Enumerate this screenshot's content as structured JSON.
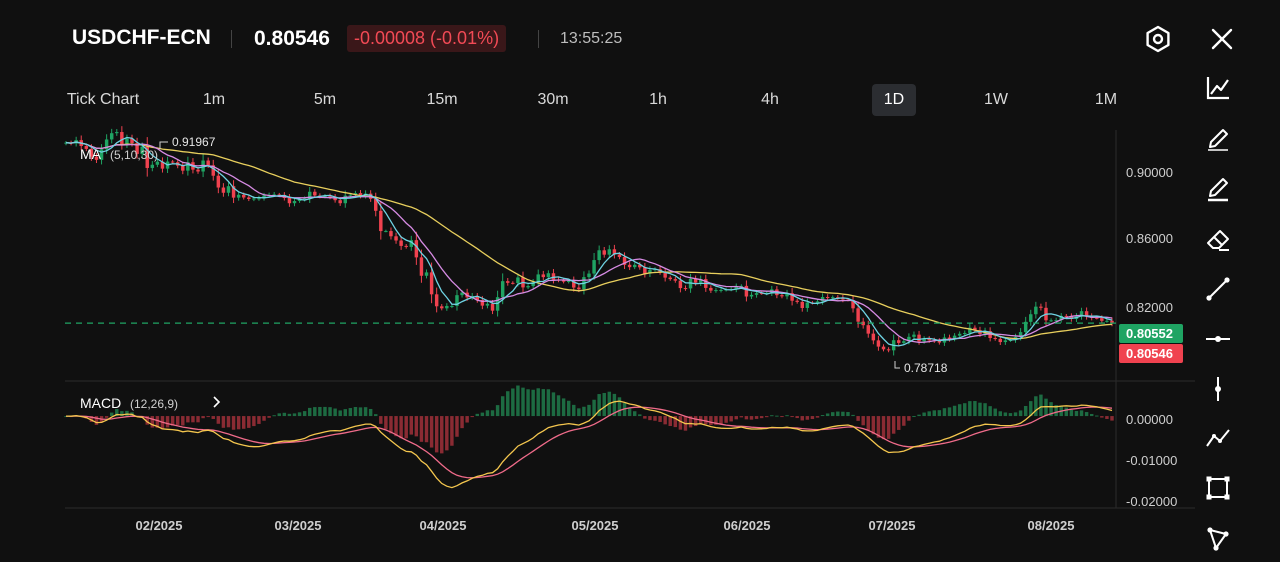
{
  "header": {
    "symbol": "USDCHF-ECN",
    "price": "0.80546",
    "change": "-0.00008 (-0.01%)",
    "time": "13:55:25",
    "settings_icon": "hexagon-settings-icon",
    "close_icon": "close-icon"
  },
  "timeframes": [
    {
      "label": "Tick Chart",
      "active": false
    },
    {
      "label": "1m",
      "active": false
    },
    {
      "label": "5m",
      "active": false
    },
    {
      "label": "15m",
      "active": false
    },
    {
      "label": "30m",
      "active": false
    },
    {
      "label": "1h",
      "active": false
    },
    {
      "label": "4h",
      "active": false
    },
    {
      "label": "1D",
      "active": true
    },
    {
      "label": "1W",
      "active": false
    },
    {
      "label": "1M",
      "active": false
    }
  ],
  "tools": [
    "line-chart-icon",
    "pencil-icon",
    "pencil-underline-icon",
    "eraser-icon",
    "trend-line-icon",
    "horizontal-line-icon",
    "vertical-line-icon",
    "polyline-icon",
    "rectangle-icon",
    "shapes-icon"
  ],
  "chart": {
    "ma_label": "MA",
    "ma_params": "(5,10,30)",
    "macd_label": "MACD",
    "macd_params": "(12,26,9)",
    "high_label": "0.91967",
    "low_label": "0.78718",
    "price_ticks": [
      "0.90000",
      "0.86000",
      "0.82000"
    ],
    "price_range": [
      0.773,
      0.92
    ],
    "macd_ticks": [
      "0.00000",
      "-0.01000",
      "-0.02000"
    ],
    "macd_range": [
      -0.0215,
      0.0075
    ],
    "bid_label": "0.80552",
    "ask_label": "0.80546",
    "bid_value": 0.80552,
    "ask_value": 0.80546,
    "x_labels": [
      "02/2025",
      "03/2025",
      "04/2025",
      "05/2025",
      "06/2025",
      "07/2025",
      "08/2025"
    ],
    "colors": {
      "up": "#1fa463",
      "down": "#f0424f",
      "ma5": "#6fd3e3",
      "ma10": "#d68be3",
      "ma30": "#e8cf5d",
      "dif": "#f4c64e",
      "dea": "#f06b8a"
    }
  },
  "chart_data": {
    "type": "candlestick",
    "series_close": [
      0.9125,
      0.912,
      0.914,
      0.9105,
      0.9088,
      0.9042,
      0.9023,
      0.9086,
      0.9144,
      0.9181,
      0.9188,
      0.9115,
      0.9149,
      0.9123,
      0.9058,
      0.9101,
      0.8975,
      0.8994,
      0.9012,
      0.8971,
      0.9013,
      0.9009,
      0.8989,
      0.8959,
      0.9009,
      0.8965,
      0.8954,
      0.9019,
      0.8991,
      0.8929,
      0.8859,
      0.8828,
      0.8867,
      0.8799,
      0.8816,
      0.88,
      0.8791,
      0.8794,
      0.8795,
      0.8812,
      0.8816,
      0.8818,
      0.8815,
      0.8797,
      0.8766,
      0.8779,
      0.8788,
      0.8793,
      0.8834,
      0.8812,
      0.8806,
      0.8807,
      0.8804,
      0.8784,
      0.8766,
      0.8811,
      0.8817,
      0.8826,
      0.8811,
      0.8823,
      0.8792,
      0.8721,
      0.8601,
      0.8601,
      0.857,
      0.8545,
      0.8513,
      0.8507,
      0.8547,
      0.8445,
      0.8336,
      0.8356,
      0.8226,
      0.8155,
      0.8143,
      0.8157,
      0.8157,
      0.8221,
      0.8236,
      0.8208,
      0.8216,
      0.8192,
      0.8159,
      0.817,
      0.8129,
      0.8209,
      0.8304,
      0.8294,
      0.8293,
      0.8326,
      0.8267,
      0.8275,
      0.8298,
      0.8344,
      0.8328,
      0.8351,
      0.8313,
      0.8311,
      0.8301,
      0.8305,
      0.8266,
      0.8256,
      0.8328,
      0.8349,
      0.8429,
      0.8487,
      0.8461,
      0.8493,
      0.8462,
      0.8447,
      0.8401,
      0.8387,
      0.8401,
      0.8386,
      0.8349,
      0.837,
      0.8375,
      0.8358,
      0.8325,
      0.8316,
      0.8307,
      0.8263,
      0.8261,
      0.8318,
      0.8295,
      0.8316,
      0.8264,
      0.8248,
      0.8251,
      0.8252,
      0.8255,
      0.8256,
      0.8271,
      0.8276,
      0.8213,
      0.8223,
      0.8233,
      0.8232,
      0.8235,
      0.8255,
      0.8221,
      0.8214,
      0.8233,
      0.8188,
      0.8181,
      0.8145,
      0.8177,
      0.8174,
      0.8184,
      0.821,
      0.8205,
      0.8209,
      0.8205,
      0.8195,
      0.8192,
      0.8143,
      0.8064,
      0.8043,
      0.7993,
      0.7953,
      0.7916,
      0.79,
      0.7894,
      0.7954,
      0.7938,
      0.7948,
      0.7974,
      0.7987,
      0.7947,
      0.7962,
      0.7953,
      0.7952,
      0.794,
      0.797,
      0.7961,
      0.7981,
      0.7992,
      0.7997,
      0.8028,
      0.8014,
      0.7991,
      0.8008,
      0.7967,
      0.7962,
      0.7943,
      0.7953,
      0.7955,
      0.7974,
      0.8002,
      0.8063,
      0.8108,
      0.8153,
      0.8146,
      0.8072,
      0.8072,
      0.8073,
      0.8098,
      0.8095,
      0.808,
      0.8094,
      0.8126,
      0.8096,
      0.8087,
      0.8085,
      0.8069,
      0.8069,
      0.8055
    ]
  }
}
